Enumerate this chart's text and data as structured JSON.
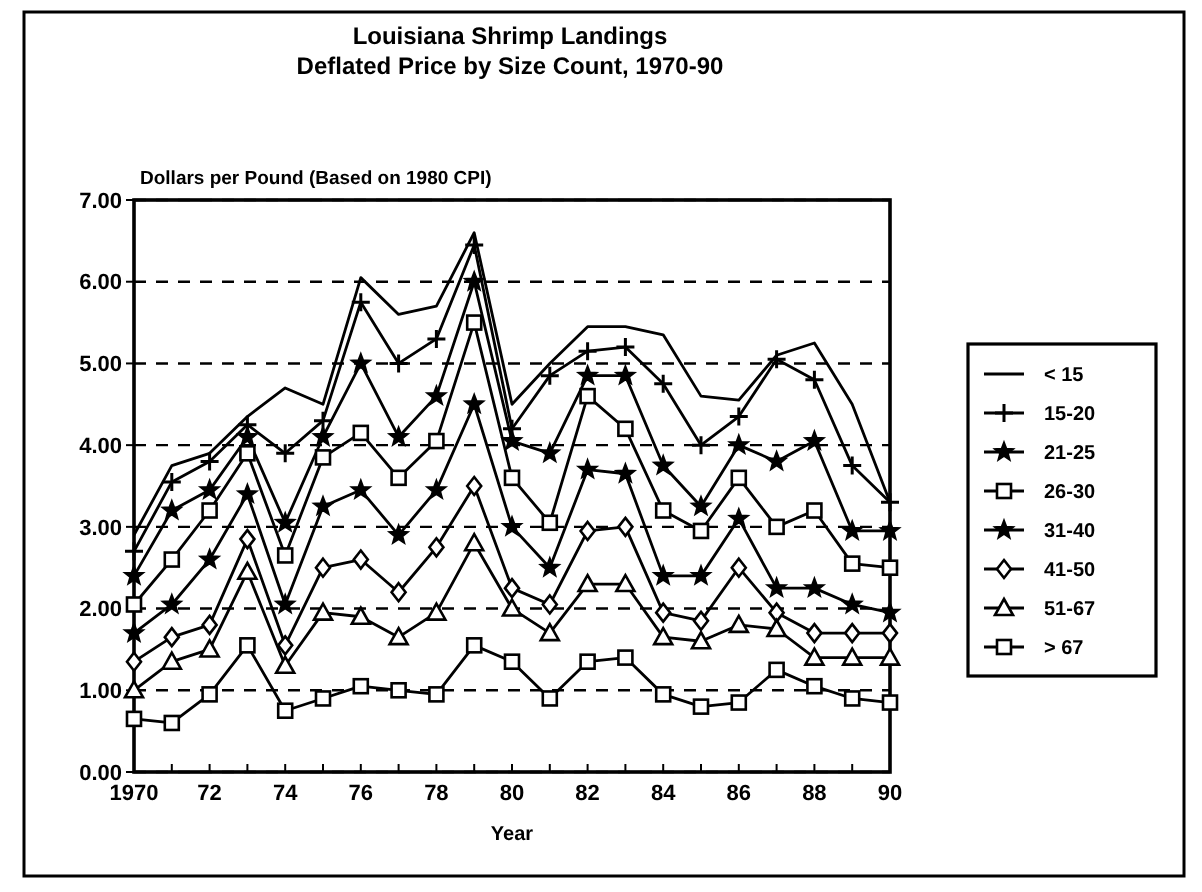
{
  "chart_data": {
    "type": "line",
    "title": "Louisiana Shrimp Landings",
    "subtitle": "Deflated Price by Size Count, 1970-90",
    "ylabel": "Dollars per Pound (Based on 1980 CPI)",
    "xlabel": "Year",
    "x": [
      1970,
      1971,
      1972,
      1973,
      1974,
      1975,
      1976,
      1977,
      1978,
      1979,
      1980,
      1981,
      1982,
      1983,
      1984,
      1985,
      1986,
      1987,
      1988,
      1989,
      1990
    ],
    "xlim": [
      1970,
      1990
    ],
    "xticks": [
      1970,
      {
        "value": 1971,
        "label": null
      },
      {
        "value": 1972,
        "label": "72"
      },
      {
        "value": 1973,
        "label": null
      },
      {
        "value": 1974,
        "label": "74"
      },
      {
        "value": 1975,
        "label": null
      },
      {
        "value": 1976,
        "label": "76"
      },
      {
        "value": 1977,
        "label": null
      },
      {
        "value": 1978,
        "label": "78"
      },
      {
        "value": 1979,
        "label": null
      },
      {
        "value": 1980,
        "label": "80"
      },
      {
        "value": 1981,
        "label": null
      },
      {
        "value": 1982,
        "label": "82"
      },
      {
        "value": 1983,
        "label": null
      },
      {
        "value": 1984,
        "label": "84"
      },
      {
        "value": 1985,
        "label": null
      },
      {
        "value": 1986,
        "label": "86"
      },
      {
        "value": 1987,
        "label": null
      },
      {
        "value": 1988,
        "label": "88"
      },
      {
        "value": 1989,
        "label": null
      },
      {
        "value": 1990,
        "label": "90"
      }
    ],
    "ylim": [
      0,
      7
    ],
    "yticks": [
      {
        "value": 0,
        "label": "0.00"
      },
      {
        "value": 1,
        "label": "1.00"
      },
      {
        "value": 2,
        "label": "2.00"
      },
      {
        "value": 3,
        "label": "3.00"
      },
      {
        "value": 4,
        "label": "4.00"
      },
      {
        "value": 5,
        "label": "5.00"
      },
      {
        "value": 6,
        "label": "6.00"
      },
      {
        "value": 7,
        "label": "7.00"
      }
    ],
    "grid": "y",
    "legend": "right",
    "line_style": "solid",
    "series": [
      {
        "name": "< 15",
        "color": "#000000",
        "marker": "none",
        "values": [
          2.9,
          3.75,
          3.9,
          4.35,
          4.7,
          4.5,
          6.05,
          5.6,
          5.7,
          6.6,
          4.5,
          5.0,
          5.45,
          5.45,
          5.35,
          4.6,
          4.55,
          5.1,
          5.25,
          4.5,
          3.3
        ]
      },
      {
        "name": "15-20",
        "color": "#000000",
        "marker": "cross",
        "values": [
          2.7,
          3.55,
          3.8,
          4.25,
          3.9,
          4.3,
          5.75,
          5.0,
          5.3,
          6.45,
          4.2,
          4.85,
          5.15,
          5.2,
          4.75,
          4.0,
          4.35,
          5.05,
          4.8,
          3.75,
          3.3
        ]
      },
      {
        "name": "21-25",
        "color": "#000000",
        "marker": "star",
        "values": [
          2.4,
          3.2,
          3.45,
          4.1,
          3.05,
          4.1,
          5.0,
          4.1,
          4.6,
          6.0,
          4.05,
          3.9,
          4.85,
          4.85,
          3.75,
          3.25,
          4.0,
          3.8,
          4.05,
          2.95,
          2.95
        ]
      },
      {
        "name": "26-30",
        "color": "#000000",
        "marker": "square",
        "values": [
          2.05,
          2.6,
          3.2,
          3.9,
          2.65,
          3.85,
          4.15,
          3.6,
          4.05,
          5.5,
          3.6,
          3.05,
          4.6,
          4.2,
          3.2,
          2.95,
          3.6,
          3.0,
          3.2,
          2.55,
          2.5
        ]
      },
      {
        "name": "31-40",
        "color": "#000000",
        "marker": "star",
        "values": [
          1.7,
          2.05,
          2.6,
          3.4,
          2.05,
          3.25,
          3.45,
          2.9,
          3.45,
          4.5,
          3.0,
          2.5,
          3.7,
          3.65,
          2.4,
          2.4,
          3.1,
          2.25,
          2.25,
          2.05,
          1.95
        ]
      },
      {
        "name": "41-50",
        "color": "#000000",
        "marker": "diamond",
        "values": [
          1.35,
          1.65,
          1.8,
          2.85,
          1.55,
          2.5,
          2.6,
          2.2,
          2.75,
          3.5,
          2.25,
          2.05,
          2.95,
          3.0,
          1.95,
          1.85,
          2.5,
          1.95,
          1.7,
          1.7,
          1.7
        ]
      },
      {
        "name": "51-67",
        "color": "#000000",
        "marker": "triangle",
        "values": [
          1.0,
          1.35,
          1.5,
          2.45,
          1.3,
          1.95,
          1.9,
          1.65,
          1.95,
          2.8,
          2.0,
          1.7,
          2.3,
          2.3,
          1.65,
          1.6,
          1.8,
          1.75,
          1.4,
          1.4,
          1.4
        ]
      },
      {
        "name": "> 67",
        "color": "#000000",
        "marker": "square",
        "values": [
          0.65,
          0.6,
          0.95,
          1.55,
          0.75,
          0.9,
          1.05,
          1.0,
          0.95,
          1.55,
          1.35,
          0.9,
          1.35,
          1.4,
          0.95,
          0.8,
          0.85,
          1.25,
          1.05,
          0.9,
          0.85
        ]
      }
    ]
  }
}
